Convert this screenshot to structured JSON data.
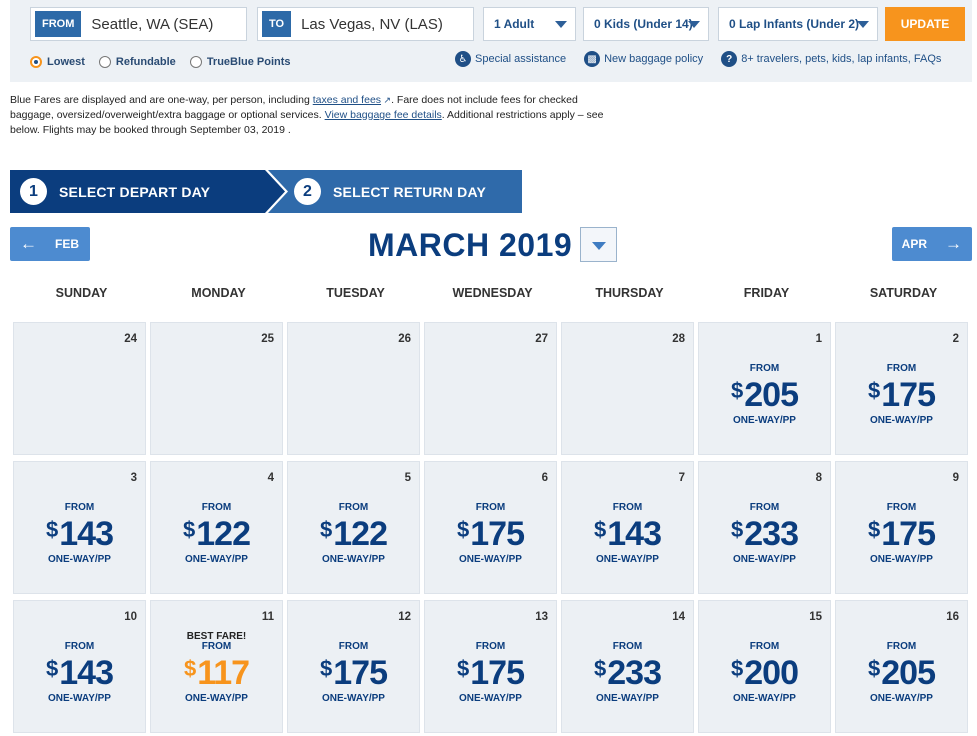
{
  "search": {
    "from_tag": "FROM",
    "from_value": "Seattle, WA (SEA)",
    "to_tag": "TO",
    "to_value": "Las Vegas, NV (LAS)",
    "adults": "1 Adult",
    "kids": "0 Kids (Under 14)",
    "infants": "0 Lap Infants (Under 2)",
    "update_label": "UPDATE"
  },
  "fare_options": [
    {
      "label": "Lowest",
      "selected": true
    },
    {
      "label": "Refundable",
      "selected": false
    },
    {
      "label": "TrueBlue Points",
      "selected": false
    }
  ],
  "links": {
    "special_assistance": "Special assistance",
    "baggage_policy": "New baggage policy",
    "travelers_faq": "8+ travelers, pets, kids, lap infants, FAQs"
  },
  "note": {
    "part1": "Blue Fares are displayed and are one-way, per person, including ",
    "taxes_link": "taxes and fees",
    "part2": ". Fare does not include fees for checked baggage, oversized/overweight/extra baggage or optional services. ",
    "baggage_link": "View baggage fee details",
    "part3": ". Additional restrictions apply – see below. Flights may be booked through September 03, 2019 ."
  },
  "steps": [
    {
      "num": "1",
      "label": "SELECT DEPART DAY"
    },
    {
      "num": "2",
      "label": "SELECT RETURN DAY"
    }
  ],
  "calendar": {
    "prev_label": "FEB",
    "next_label": "APR",
    "month_title": "MARCH 2019",
    "weekdays": [
      "SUNDAY",
      "MONDAY",
      "TUESDAY",
      "WEDNESDAY",
      "THURSDAY",
      "FRIDAY",
      "SATURDAY"
    ],
    "from_label": "FROM",
    "oneway_label": "ONE-WAY/PP",
    "best_label": "BEST FARE!",
    "currency": "$",
    "days": [
      {
        "day": "24",
        "price": null
      },
      {
        "day": "25",
        "price": null
      },
      {
        "day": "26",
        "price": null
      },
      {
        "day": "27",
        "price": null
      },
      {
        "day": "28",
        "price": null
      },
      {
        "day": "1",
        "price": "205"
      },
      {
        "day": "2",
        "price": "175"
      },
      {
        "day": "3",
        "price": "143"
      },
      {
        "day": "4",
        "price": "122"
      },
      {
        "day": "5",
        "price": "122"
      },
      {
        "day": "6",
        "price": "175"
      },
      {
        "day": "7",
        "price": "143"
      },
      {
        "day": "8",
        "price": "233"
      },
      {
        "day": "9",
        "price": "175"
      },
      {
        "day": "10",
        "price": "143"
      },
      {
        "day": "11",
        "price": "117",
        "best": true
      },
      {
        "day": "12",
        "price": "175"
      },
      {
        "day": "13",
        "price": "175"
      },
      {
        "day": "14",
        "price": "233"
      },
      {
        "day": "15",
        "price": "200"
      },
      {
        "day": "16",
        "price": "205"
      }
    ]
  },
  "colors": {
    "brand_navy": "#0b3d7e",
    "accent_orange": "#f7941d",
    "nav_blue": "#4d8bd0"
  }
}
